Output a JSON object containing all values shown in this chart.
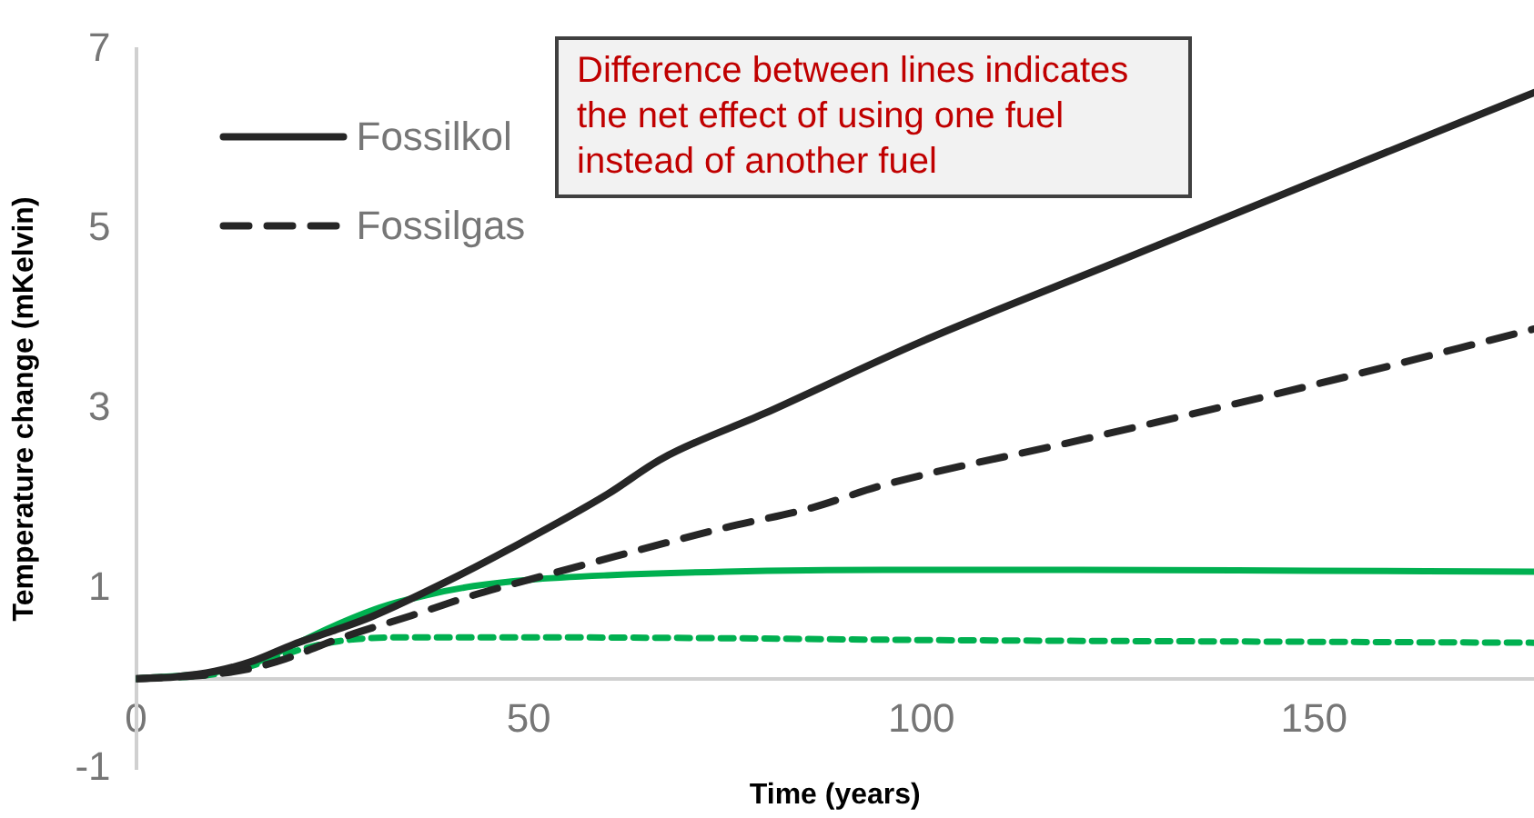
{
  "chart_data": {
    "type": "line",
    "xlabel": "Time (years)",
    "ylabel": "Temperature change (mKelvin)",
    "xlim": [
      0,
      178
    ],
    "xticks": [
      0,
      50,
      100,
      150
    ],
    "ylim": [
      -1,
      7
    ],
    "yticks": [
      -1,
      1,
      3,
      5,
      7
    ],
    "grid": false,
    "legend": "top left",
    "marker": "none",
    "annotations": [
      "Difference between lines indicates the net effect of using one fuel instead of another fuel"
    ],
    "series": [
      {
        "name": "Fossilkol",
        "color": "#262626",
        "line_style": "solid",
        "x": [
          0,
          5,
          10,
          15,
          20,
          25,
          30,
          40,
          47.5,
          60,
          67,
          80,
          100,
          125,
          150,
          178
        ],
        "values": [
          0,
          0.02,
          0.08,
          0.2,
          0.38,
          0.53,
          0.69,
          1.1,
          1.44,
          2.05,
          2.45,
          2.95,
          3.75,
          4.64,
          5.53,
          6.52
        ]
      },
      {
        "name": "Fossilgas",
        "color": "#262626",
        "line_style": "dashed",
        "x": [
          0,
          10,
          15,
          19,
          26,
          35,
          43,
          50,
          61,
          75,
          86,
          95,
          120,
          150,
          178
        ],
        "values": [
          0,
          0.05,
          0.12,
          0.22,
          0.45,
          0.7,
          0.93,
          1.1,
          1.36,
          1.68,
          1.9,
          2.15,
          2.65,
          3.27,
          3.89
        ]
      },
      {
        "color": "#00b050",
        "line_style": "solid",
        "x": [
          0,
          10,
          15,
          19,
          25,
          31,
          37,
          43,
          50,
          60,
          75,
          95,
          120,
          150,
          178
        ],
        "values": [
          0,
          0.07,
          0.17,
          0.33,
          0.58,
          0.79,
          0.93,
          1.03,
          1.1,
          1.15,
          1.19,
          1.21,
          1.21,
          1.2,
          1.19
        ]
      },
      {
        "color": "#00b050",
        "line_style": "dashed",
        "x": [
          0,
          10,
          15,
          20,
          26,
          35,
          50,
          75,
          100,
          150,
          178
        ],
        "values": [
          0,
          0.05,
          0.15,
          0.3,
          0.42,
          0.46,
          0.46,
          0.45,
          0.43,
          0.41,
          0.4
        ]
      }
    ]
  }
}
